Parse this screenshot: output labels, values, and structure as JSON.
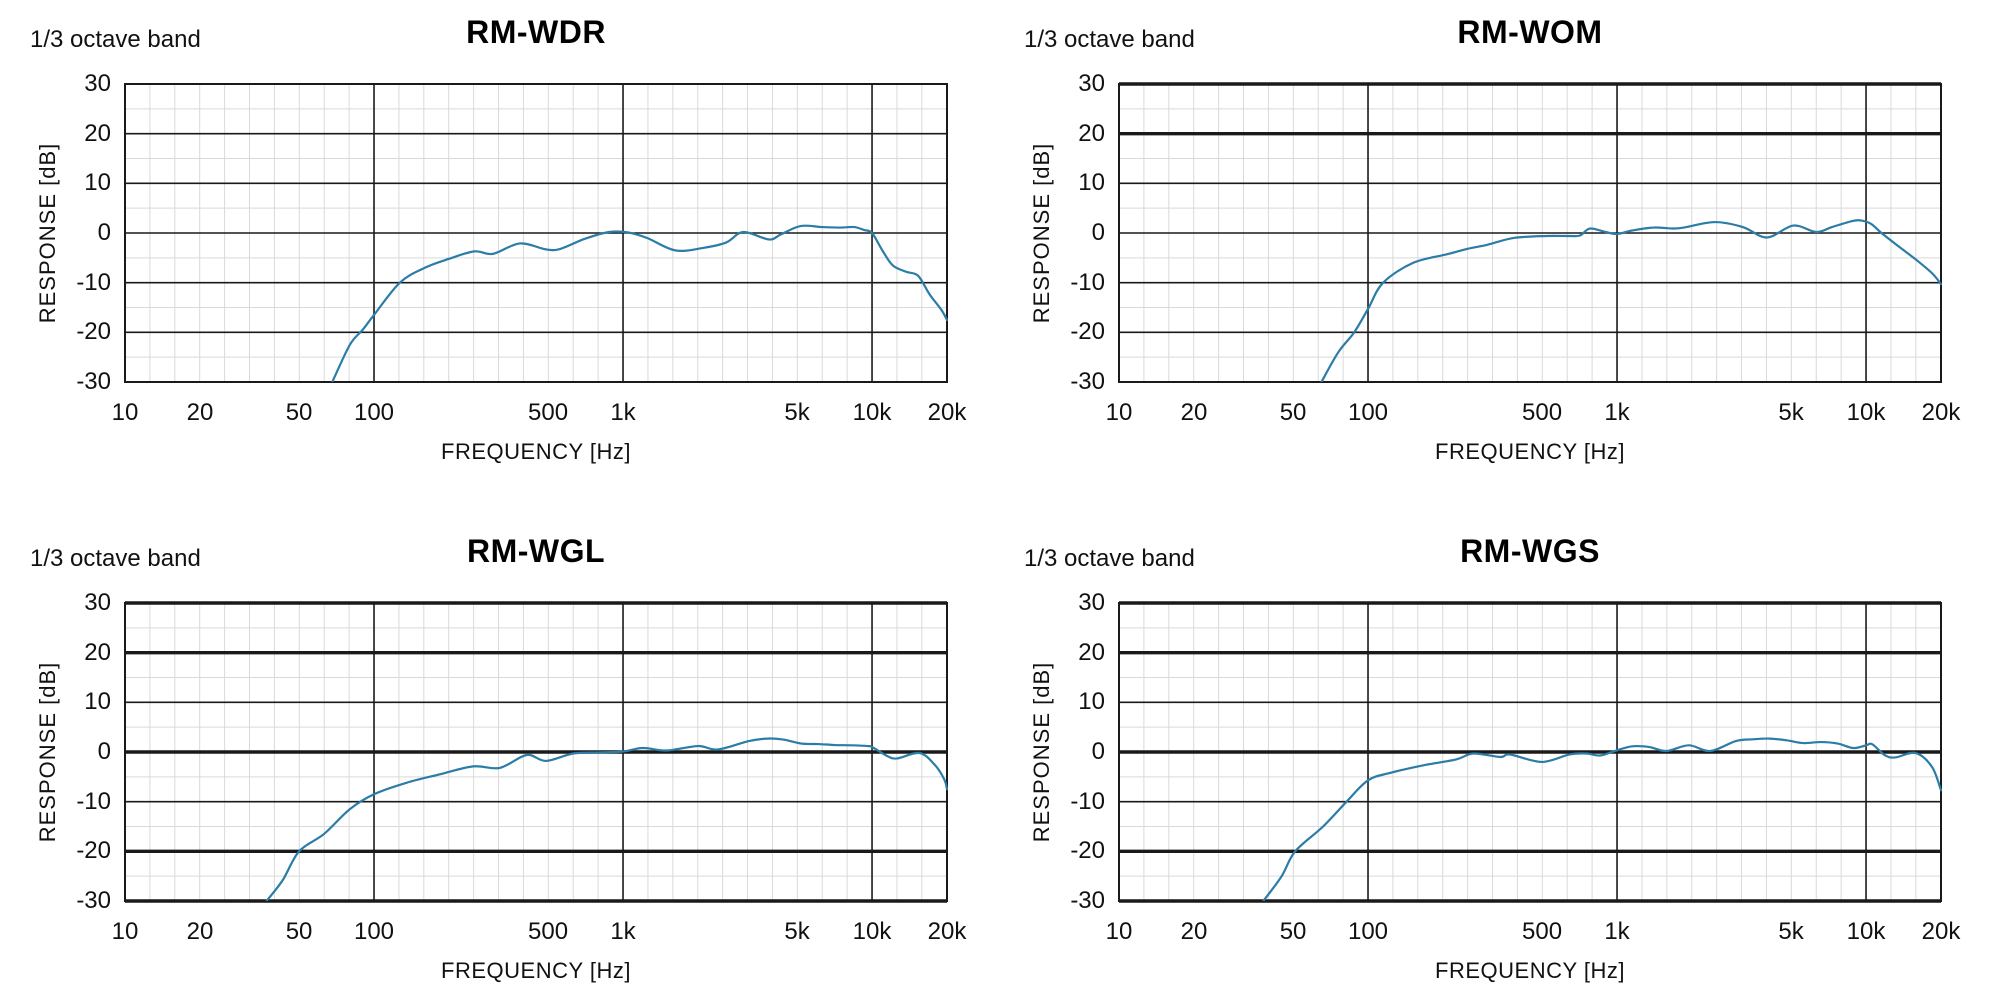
{
  "chart_data": [
    {
      "type": "line",
      "title": "RM-WDR",
      "corner_label": "1/3 octave band",
      "xlabel": "FREQUENCY [Hz]",
      "ylabel": "RESPONSE [dB]",
      "x_scale": "log",
      "xlim": [
        10,
        20000
      ],
      "ylim": [
        -30,
        30
      ],
      "grid": "on",
      "x_ticks": [
        {
          "f": 10,
          "label": "10"
        },
        {
          "f": 20,
          "label": "20"
        },
        {
          "f": 50,
          "label": "50"
        },
        {
          "f": 100,
          "label": "100"
        },
        {
          "f": 500,
          "label": "500"
        },
        {
          "f": 1000,
          "label": "1k"
        },
        {
          "f": 5000,
          "label": "5k"
        },
        {
          "f": 10000,
          "label": "10k"
        },
        {
          "f": 20000,
          "label": "20k"
        }
      ],
      "y_ticks": [
        30,
        20,
        10,
        0,
        -10,
        -20,
        -30
      ],
      "emphasized_gridlines_db": [],
      "series": [
        {
          "name": "1/3 octave band frequency response",
          "points": [
            [
              68,
              -30
            ],
            [
              80,
              -22.5
            ],
            [
              90,
              -19.5
            ],
            [
              100,
              -16.5
            ],
            [
              127,
              -10
            ],
            [
              160,
              -7
            ],
            [
              200,
              -5.2
            ],
            [
              253,
              -3.7
            ],
            [
              300,
              -4.2
            ],
            [
              385,
              -2.1
            ],
            [
              490,
              -3.3
            ],
            [
              560,
              -3.2
            ],
            [
              700,
              -1.2
            ],
            [
              880,
              0.2
            ],
            [
              1050,
              0.1
            ],
            [
              1250,
              -1
            ],
            [
              1620,
              -3.5
            ],
            [
              2100,
              -3
            ],
            [
              2600,
              -1.9
            ],
            [
              3040,
              0.2
            ],
            [
              3850,
              -1.3
            ],
            [
              4300,
              -0.3
            ],
            [
              5160,
              1.4
            ],
            [
              6300,
              1.2
            ],
            [
              7500,
              1.1
            ],
            [
              8500,
              1.2
            ],
            [
              9300,
              0.6
            ],
            [
              10000,
              0
            ],
            [
              11000,
              -3.5
            ],
            [
              12100,
              -6.5
            ],
            [
              13700,
              -7.8
            ],
            [
              15300,
              -8.6
            ],
            [
              17000,
              -12.3
            ],
            [
              19000,
              -15.5
            ],
            [
              20000,
              -17.5
            ]
          ]
        }
      ]
    },
    {
      "type": "line",
      "title": "RM-WOM",
      "corner_label": "1/3 octave band",
      "xlabel": "FREQUENCY [Hz]",
      "ylabel": "RESPONSE [dB]",
      "x_scale": "log",
      "xlim": [
        10,
        20000
      ],
      "ylim": [
        -30,
        30
      ],
      "grid": "on",
      "x_ticks": [
        {
          "f": 10,
          "label": "10"
        },
        {
          "f": 20,
          "label": "20"
        },
        {
          "f": 50,
          "label": "50"
        },
        {
          "f": 100,
          "label": "100"
        },
        {
          "f": 500,
          "label": "500"
        },
        {
          "f": 1000,
          "label": "1k"
        },
        {
          "f": 5000,
          "label": "5k"
        },
        {
          "f": 10000,
          "label": "10k"
        },
        {
          "f": 20000,
          "label": "20k"
        }
      ],
      "y_ticks": [
        30,
        20,
        10,
        0,
        -10,
        -20,
        -30
      ],
      "emphasized_gridlines_db": [
        30,
        20
      ],
      "series": [
        {
          "name": "1/3 octave band frequency response",
          "points": [
            [
              65,
              -30
            ],
            [
              76,
              -24
            ],
            [
              88,
              -20
            ],
            [
              100,
              -15.3
            ],
            [
              115,
              -10
            ],
            [
              152,
              -6
            ],
            [
              207,
              -4.3
            ],
            [
              250,
              -3.2
            ],
            [
              300,
              -2.4
            ],
            [
              385,
              -1
            ],
            [
              520,
              -0.6
            ],
            [
              640,
              -0.6
            ],
            [
              710,
              -0.5
            ],
            [
              778,
              0.9
            ],
            [
              900,
              0.2
            ],
            [
              1000,
              -0.2
            ],
            [
              1150,
              0.5
            ],
            [
              1400,
              1.1
            ],
            [
              1700,
              0.9
            ],
            [
              1900,
              1.2
            ],
            [
              2470,
              2.2
            ],
            [
              3200,
              1.2
            ],
            [
              4000,
              -0.9
            ],
            [
              5100,
              1.5
            ],
            [
              6300,
              0.2
            ],
            [
              7300,
              1.2
            ],
            [
              8800,
              2.4
            ],
            [
              9600,
              2.5
            ],
            [
              10500,
              1.8
            ],
            [
              11600,
              -0.1
            ],
            [
              13600,
              -2.8
            ],
            [
              16000,
              -5.5
            ],
            [
              18500,
              -8.2
            ],
            [
              20000,
              -10.3
            ]
          ]
        }
      ]
    },
    {
      "type": "line",
      "title": "RM-WGL",
      "corner_label": "1/3 octave band",
      "xlabel": "FREQUENCY [Hz]",
      "ylabel": "RESPONSE [dB]",
      "x_scale": "log",
      "xlim": [
        10,
        20000
      ],
      "ylim": [
        -30,
        30
      ],
      "grid": "on",
      "x_ticks": [
        {
          "f": 10,
          "label": "10"
        },
        {
          "f": 20,
          "label": "20"
        },
        {
          "f": 50,
          "label": "50"
        },
        {
          "f": 100,
          "label": "100"
        },
        {
          "f": 500,
          "label": "500"
        },
        {
          "f": 1000,
          "label": "1k"
        },
        {
          "f": 5000,
          "label": "5k"
        },
        {
          "f": 10000,
          "label": "10k"
        },
        {
          "f": 20000,
          "label": "20k"
        }
      ],
      "y_ticks": [
        30,
        20,
        10,
        0,
        -10,
        -20,
        -30
      ],
      "emphasized_gridlines_db": [
        30,
        20,
        0,
        -20,
        -30
      ],
      "series": [
        {
          "name": "1/3 octave band frequency response",
          "points": [
            [
              37,
              -30
            ],
            [
              43,
              -25.8
            ],
            [
              50,
              -20
            ],
            [
              63,
              -16.5
            ],
            [
              80,
              -11.5
            ],
            [
              100,
              -8.5
            ],
            [
              135,
              -6.2
            ],
            [
              184,
              -4.5
            ],
            [
              250,
              -2.9
            ],
            [
              320,
              -3.2
            ],
            [
              410,
              -0.6
            ],
            [
              490,
              -1.8
            ],
            [
              630,
              -0.3
            ],
            [
              800,
              -0.1
            ],
            [
              1000,
              0.1
            ],
            [
              1200,
              0.8
            ],
            [
              1500,
              0.3
            ],
            [
              2000,
              1.2
            ],
            [
              2400,
              0.5
            ],
            [
              3200,
              2.2
            ],
            [
              3800,
              2.7
            ],
            [
              4400,
              2.5
            ],
            [
              5200,
              1.7
            ],
            [
              6100,
              1.6
            ],
            [
              7100,
              1.4
            ],
            [
              8300,
              1.35
            ],
            [
              9600,
              1.2
            ],
            [
              10000,
              1
            ],
            [
              11500,
              -0.8
            ],
            [
              12600,
              -1.3
            ],
            [
              15500,
              -0.2
            ],
            [
              17800,
              -2.5
            ],
            [
              19500,
              -5.5
            ],
            [
              20000,
              -7.5
            ]
          ]
        }
      ]
    },
    {
      "type": "line",
      "title": "RM-WGS",
      "corner_label": "1/3 octave band",
      "xlabel": "FREQUENCY [Hz]",
      "ylabel": "RESPONSE [dB]",
      "x_scale": "log",
      "xlim": [
        10,
        20000
      ],
      "ylim": [
        -30,
        30
      ],
      "grid": "on",
      "x_ticks": [
        {
          "f": 10,
          "label": "10"
        },
        {
          "f": 20,
          "label": "20"
        },
        {
          "f": 50,
          "label": "50"
        },
        {
          "f": 100,
          "label": "100"
        },
        {
          "f": 500,
          "label": "500"
        },
        {
          "f": 1000,
          "label": "1k"
        },
        {
          "f": 5000,
          "label": "5k"
        },
        {
          "f": 10000,
          "label": "10k"
        },
        {
          "f": 20000,
          "label": "20k"
        }
      ],
      "y_ticks": [
        30,
        20,
        10,
        0,
        -10,
        -20,
        -30
      ],
      "emphasized_gridlines_db": [
        30,
        20,
        0,
        -20,
        -30
      ],
      "series": [
        {
          "name": "1/3 octave band frequency response",
          "points": [
            [
              38,
              -30
            ],
            [
              45,
              -25
            ],
            [
              51,
              -20
            ],
            [
              66,
              -15
            ],
            [
              82,
              -10
            ],
            [
              100,
              -5.7
            ],
            [
              123,
              -4.2
            ],
            [
              166,
              -2.7
            ],
            [
              226,
              -1.5
            ],
            [
              265,
              -0.3
            ],
            [
              340,
              -1
            ],
            [
              372,
              -0.5
            ],
            [
              498,
              -2
            ],
            [
              645,
              -0.5
            ],
            [
              755,
              -0.3
            ],
            [
              855,
              -0.7
            ],
            [
              1000,
              0.35
            ],
            [
              1150,
              1.15
            ],
            [
              1350,
              1
            ],
            [
              1580,
              0.2
            ],
            [
              1940,
              1.35
            ],
            [
              2370,
              0.2
            ],
            [
              3000,
              2.2
            ],
            [
              3500,
              2.55
            ],
            [
              4100,
              2.7
            ],
            [
              4800,
              2.35
            ],
            [
              5600,
              1.8
            ],
            [
              6600,
              2
            ],
            [
              7700,
              1.7
            ],
            [
              8900,
              0.8
            ],
            [
              10000,
              1.35
            ],
            [
              10600,
              1.55
            ],
            [
              11900,
              -0.65
            ],
            [
              13100,
              -1.1
            ],
            [
              15800,
              -0.2
            ],
            [
              18400,
              -3
            ],
            [
              20000,
              -7.7
            ]
          ]
        }
      ]
    }
  ],
  "style": {
    "curve_color": "#2b7ca6",
    "grid_major_color": "#1a1a1a",
    "grid_minor_color": "#d9d9d9",
    "frame_color": "#1a1a1a",
    "background": "#ffffff",
    "text_color": "#111111"
  }
}
